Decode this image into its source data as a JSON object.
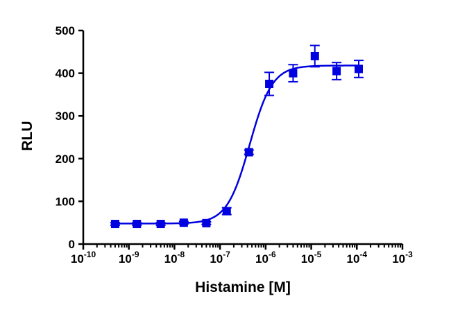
{
  "chart_data": {
    "type": "scatter",
    "xlabel": "Histamine [M]",
    "ylabel": "RLU",
    "x_scale": "log10",
    "xlim": [
      1e-10,
      0.001
    ],
    "ylim": [
      0,
      500
    ],
    "y_ticks": [
      0,
      100,
      200,
      300,
      400,
      500
    ],
    "x_tick_exponents": [
      -10,
      -9,
      -8,
      -7,
      -6,
      -5,
      -4,
      -3
    ],
    "grid": false,
    "legend": "none",
    "series": [
      {
        "color": "#0000e0",
        "marker": "square",
        "fit": "sigmoidal dose-response",
        "points": [
          {
            "x": 5e-10,
            "y": 47,
            "err": 3
          },
          {
            "x": 1.5e-09,
            "y": 47,
            "err": 3
          },
          {
            "x": 5e-09,
            "y": 47,
            "err": 3
          },
          {
            "x": 1.6e-08,
            "y": 50,
            "err": 3
          },
          {
            "x": 5e-08,
            "y": 49,
            "err": 3
          },
          {
            "x": 1.4e-07,
            "y": 77,
            "err": 8
          },
          {
            "x": 4.3e-07,
            "y": 215,
            "err": 5
          },
          {
            "x": 1.2e-06,
            "y": 375,
            "err": 27
          },
          {
            "x": 4e-06,
            "y": 400,
            "err": 20
          },
          {
            "x": 1.2e-05,
            "y": 440,
            "err": 25
          },
          {
            "x": 3.6e-05,
            "y": 405,
            "err": 20
          },
          {
            "x": 0.00011,
            "y": 410,
            "err": 20
          }
        ],
        "fit_params": {
          "bottom": 48,
          "top": 418,
          "logEC50": -6.35,
          "hill": 1.75
        }
      }
    ]
  }
}
